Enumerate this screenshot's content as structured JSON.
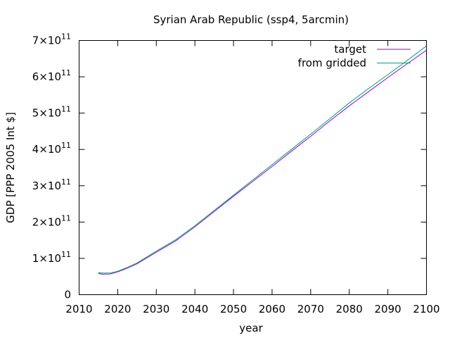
{
  "chart_data": {
    "type": "line",
    "title": "Syrian Arab Republic (ssp4, 5arcmin)",
    "xlabel": "year",
    "ylabel": "GDP [PPP 2005 Int $]",
    "xlim": [
      2010,
      2100
    ],
    "ylim": [
      0,
      700000000000.0
    ],
    "xticks": [
      2010,
      2020,
      2030,
      2040,
      2050,
      2060,
      2070,
      2080,
      2090,
      2100
    ],
    "yticks": [
      {
        "value": 0,
        "label": "0"
      },
      {
        "value": 100000000000.0,
        "mantissa": "1",
        "times": "×10",
        "exponent": "11"
      },
      {
        "value": 200000000000.0,
        "mantissa": "2",
        "times": "×10",
        "exponent": "11"
      },
      {
        "value": 300000000000.0,
        "mantissa": "3",
        "times": "×10",
        "exponent": "11"
      },
      {
        "value": 400000000000.0,
        "mantissa": "4",
        "times": "×10",
        "exponent": "11"
      },
      {
        "value": 500000000000.0,
        "mantissa": "5",
        "times": "×10",
        "exponent": "11"
      },
      {
        "value": 600000000000.0,
        "mantissa": "6",
        "times": "×10",
        "exponent": "11"
      },
      {
        "value": 700000000000.0,
        "mantissa": "7",
        "times": "×10",
        "exponent": "11"
      }
    ],
    "legend_position": "top-right",
    "grid": false,
    "x": [
      2015,
      2016,
      2018,
      2020,
      2022,
      2025,
      2030,
      2035,
      2040,
      2045,
      2050,
      2055,
      2060,
      2065,
      2070,
      2075,
      2080,
      2085,
      2090,
      2095,
      2100
    ],
    "series": [
      {
        "name": "target",
        "color": "#9400d3",
        "values": [
          58500000000.0,
          56500000000.0,
          57000000000.0,
          63000000000.0,
          71000000000.0,
          85000000000.0,
          117000000000.0,
          148000000000.0,
          187000000000.0,
          229000000000.0,
          271000000000.0,
          312000000000.0,
          353000000000.0,
          395000000000.0,
          436000000000.0,
          479000000000.0,
          520000000000.0,
          559000000000.0,
          598000000000.0,
          636000000000.0,
          673000000000.0
        ]
      },
      {
        "name": "from gridded",
        "color": "#009e73",
        "values": [
          61000000000.0,
          59500000000.0,
          59500000000.0,
          64500000000.0,
          73000000000.0,
          87500000000.0,
          120000000000.0,
          151000000000.0,
          190000000000.0,
          232000000000.0,
          274000000000.0,
          316000000000.0,
          358000000000.0,
          400000000000.0,
          442000000000.0,
          485000000000.0,
          528000000000.0,
          568000000000.0,
          606000000000.0,
          645000000000.0,
          685000000000.0
        ]
      }
    ]
  }
}
